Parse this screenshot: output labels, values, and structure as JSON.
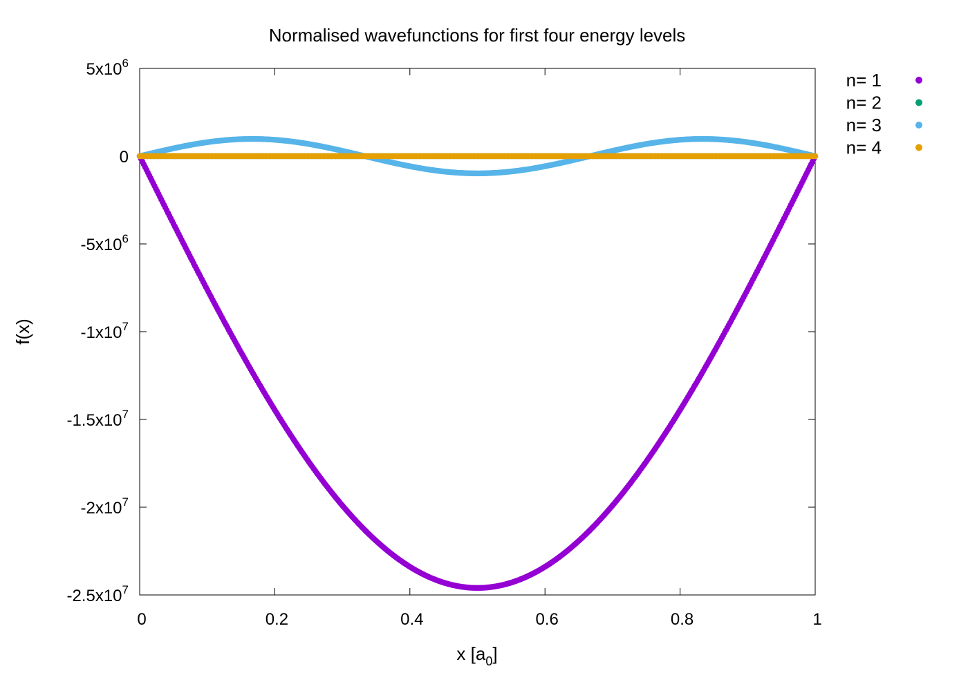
{
  "chart_data": {
    "type": "scatter",
    "title": "Normalised wavefunctions for first four energy levels",
    "xlabel": {
      "base": "x [a",
      "sub": "0",
      "tail": "]"
    },
    "ylabel": "f(x)",
    "xlim": [
      0,
      1
    ],
    "ylim": [
      -25000000,
      5000000
    ],
    "x_ticks": [
      {
        "value": 0,
        "label": "0"
      },
      {
        "value": 0.2,
        "label": "0.2"
      },
      {
        "value": 0.4,
        "label": "0.4"
      },
      {
        "value": 0.6,
        "label": "0.6"
      },
      {
        "value": 0.8,
        "label": "0.8"
      },
      {
        "value": 1,
        "label": "1"
      }
    ],
    "y_ticks": [
      {
        "value": 5000000,
        "mant": "5x10",
        "exp": "6"
      },
      {
        "value": 0,
        "mant": "0",
        "exp": ""
      },
      {
        "value": -5000000,
        "mant": "-5x10",
        "exp": "6"
      },
      {
        "value": -10000000,
        "mant": "-1x10",
        "exp": "7"
      },
      {
        "value": -15000000,
        "mant": "-1.5x10",
        "exp": "7"
      },
      {
        "value": -20000000,
        "mant": "-2x10",
        "exp": "7"
      },
      {
        "value": -25000000,
        "mant": "-2.5x10",
        "exp": "7"
      }
    ],
    "legend_position": "outside-right-top",
    "series": [
      {
        "name": "n= 1",
        "color": "#9400d3",
        "amplitude": -24600000,
        "mode": 1
      },
      {
        "name": "n= 2",
        "color": "#009e73",
        "amplitude": 0,
        "mode": 2
      },
      {
        "name": "n= 3",
        "color": "#56b4e9",
        "amplitude": 980000,
        "mode": 3
      },
      {
        "name": "n= 4",
        "color": "#e69f00",
        "amplitude": 0,
        "mode": 4
      }
    ]
  }
}
